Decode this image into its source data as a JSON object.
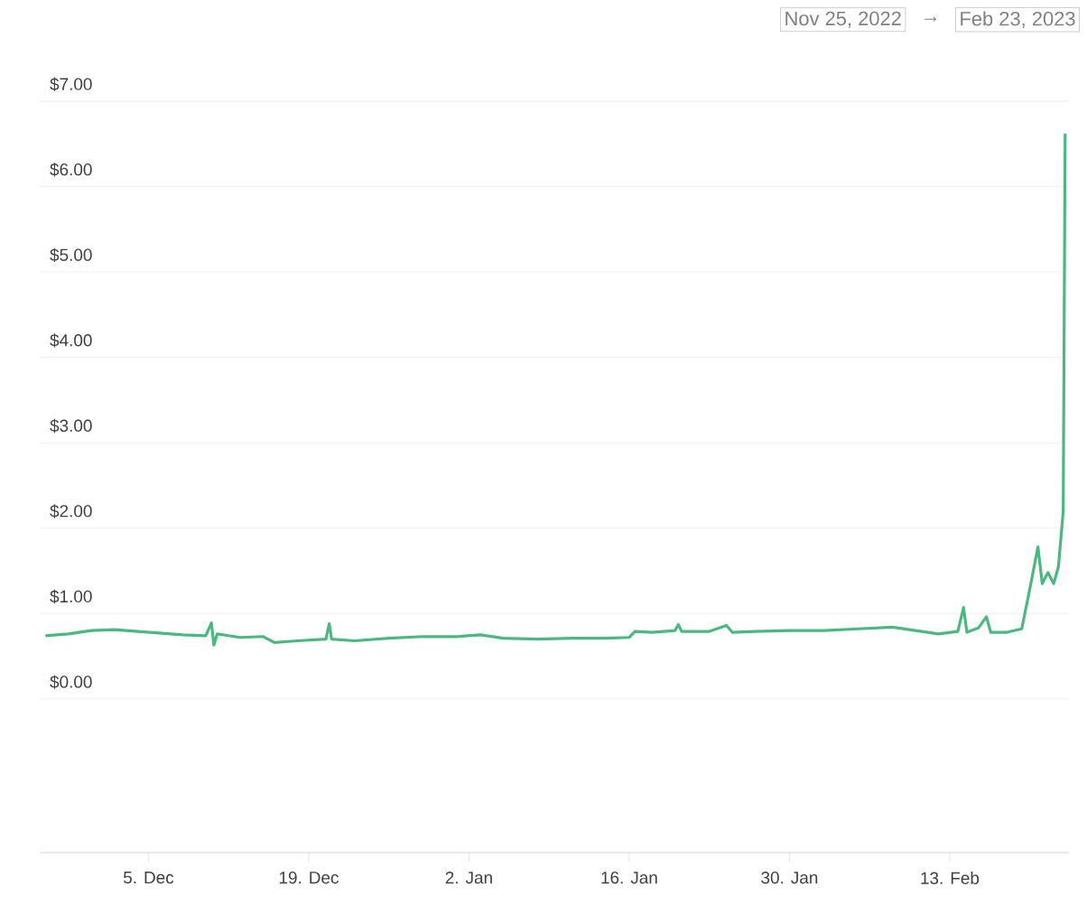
{
  "chart_data": {
    "type": "line",
    "annotations": [
      "Nov 25, 2022",
      "→",
      "Feb 23, 2023"
    ],
    "x": [
      "2022-11-26",
      "2022-11-28",
      "2022-11-30",
      "2022-12-02",
      "2022-12-04",
      "2022-12-06",
      "2022-12-08",
      "2022-12-10",
      "2022-12-10T12:00",
      "2022-12-10T17:00",
      "2022-12-11",
      "2022-12-13",
      "2022-12-15",
      "2022-12-16",
      "2022-12-18",
      "2022-12-20T12:00",
      "2022-12-20T19:00",
      "2022-12-21",
      "2022-12-23",
      "2022-12-26",
      "2022-12-29",
      "2023-01-01",
      "2023-01-03",
      "2023-01-05",
      "2023-01-08",
      "2023-01-11",
      "2023-01-14",
      "2023-01-16",
      "2023-01-16T12:00",
      "2023-01-18",
      "2023-01-20",
      "2023-01-20T07:00",
      "2023-01-20T14:00",
      "2023-01-23",
      "2023-01-24T12:00",
      "2023-01-25",
      "2023-01-27",
      "2023-01-30",
      "2023-02-02",
      "2023-02-05",
      "2023-02-08",
      "2023-02-10",
      "2023-02-12",
      "2023-02-13T17:00",
      "2023-02-14T05:00",
      "2023-02-14T12:00",
      "2023-02-15T12:00",
      "2023-02-16T05:00",
      "2023-02-16T14:00",
      "2023-02-18",
      "2023-02-19T07:00",
      "2023-02-20",
      "2023-02-20T17:00",
      "2023-02-21T02:00",
      "2023-02-21T14:00",
      "2023-02-22T02:00",
      "2023-02-22T12:00",
      "2023-02-22T22:00",
      "2023-02-23T02:00"
    ],
    "series": [
      {
        "color": "#4bb97f",
        "values": [
          0.74,
          0.76,
          0.8,
          0.81,
          0.79,
          0.77,
          0.75,
          0.74,
          0.89,
          0.63,
          0.76,
          0.72,
          0.73,
          0.66,
          0.68,
          0.7,
          0.88,
          0.7,
          0.68,
          0.71,
          0.73,
          0.73,
          0.75,
          0.71,
          0.7,
          0.71,
          0.71,
          0.72,
          0.79,
          0.78,
          0.8,
          0.87,
          0.79,
          0.79,
          0.86,
          0.78,
          0.79,
          0.8,
          0.8,
          0.82,
          0.84,
          0.8,
          0.76,
          0.79,
          1.07,
          0.78,
          0.83,
          0.96,
          0.78,
          0.78,
          0.82,
          1.29,
          1.78,
          1.35,
          1.48,
          1.35,
          1.55,
          2.2,
          6.62
        ]
      }
    ],
    "xlim": [
      "2022-11-25T12:00",
      "2023-02-23T10:00"
    ],
    "xticks": [
      {
        "value": "2022-12-05",
        "label": "5. Dec"
      },
      {
        "value": "2022-12-19",
        "label": "19. Dec"
      },
      {
        "value": "2023-01-02",
        "label": "2. Jan"
      },
      {
        "value": "2023-01-16",
        "label": "16. Jan"
      },
      {
        "value": "2023-01-30",
        "label": "30. Jan"
      },
      {
        "value": "2023-02-13",
        "label": "13. Feb"
      }
    ],
    "ylim": [
      -1.8,
      7
    ],
    "yticks": [
      {
        "value": 0,
        "label": "$0.00"
      },
      {
        "value": 1,
        "label": "$1.00"
      },
      {
        "value": 2,
        "label": "$2.00"
      },
      {
        "value": 3,
        "label": "$3.00"
      },
      {
        "value": 4,
        "label": "$4.00"
      },
      {
        "value": 5,
        "label": "$5.00"
      },
      {
        "value": 6,
        "label": "$6.00"
      },
      {
        "value": 7,
        "label": "$7.00"
      }
    ],
    "grid": "y",
    "marker": "none",
    "line_style": "solid"
  }
}
